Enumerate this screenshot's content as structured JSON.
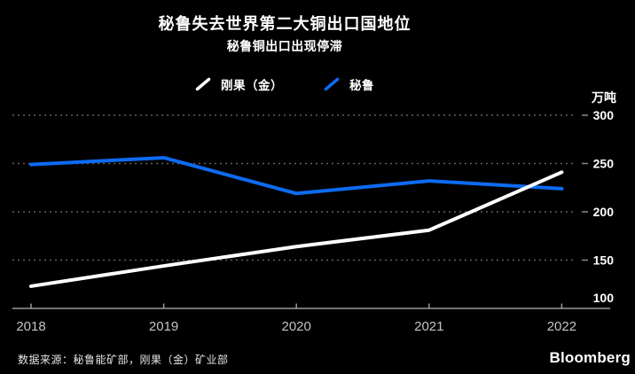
{
  "header": {
    "title": "秘鲁失去世界第二大铜出口国地位",
    "subtitle": "秘鲁铜出口出现停滞"
  },
  "chart_data": {
    "type": "line",
    "x": [
      "2018",
      "2019",
      "2020",
      "2021",
      "2022"
    ],
    "series": [
      {
        "name": "刚果（金）",
        "color": "#ffffff",
        "values": [
          123,
          144,
          164,
          181,
          241
        ]
      },
      {
        "name": "秘鲁",
        "color": "#0d6bf2",
        "values": [
          249,
          256,
          219,
          232,
          224
        ]
      }
    ],
    "unit_label": "万吨",
    "yticks": [
      300,
      250,
      200,
      150,
      100
    ],
    "ylim": [
      100,
      300
    ],
    "grid": "dotted-horizontal",
    "legend_position": "top-center",
    "ylabel": "万吨",
    "xlabel": ""
  },
  "footer": {
    "source": "数据来源：秘鲁能矿部，刚果（金）矿业部",
    "brand": "Bloomberg"
  },
  "colors": {
    "background": "#000000",
    "congo_line": "#ffffff",
    "peru_line": "#0d6bf2",
    "grid": "#5f5f5f",
    "tick_dash": "#8a8a8a",
    "axis": "#9b9b9b",
    "y_label": "#ffffff",
    "x_label": "#c4c4c4"
  }
}
